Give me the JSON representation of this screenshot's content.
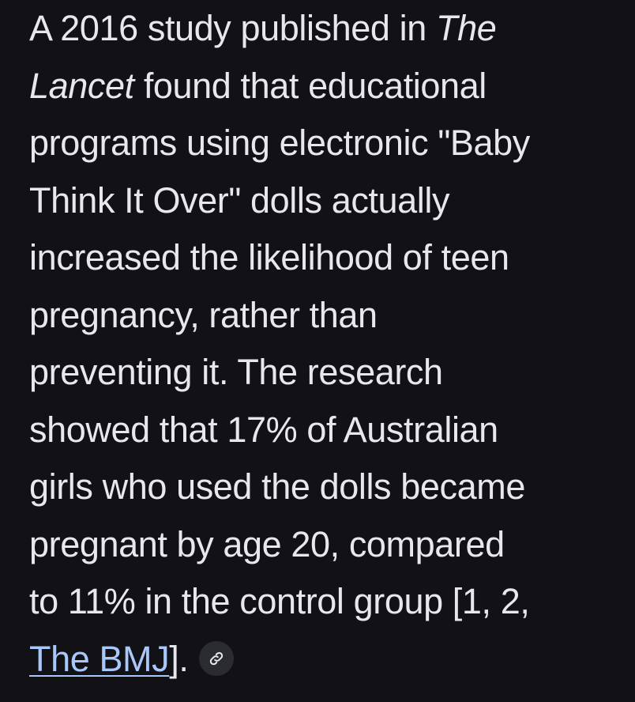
{
  "response": {
    "line1_pre": "A 2016 study published in ",
    "line1_em": "The",
    "line2_em": "Lancet",
    "line2_post": " found that educational",
    "line3": "programs using electronic \"Baby",
    "line4": "Think It Over\" dolls actually",
    "line5": "increased the likelihood of teen",
    "line6": "pregnancy, rather than",
    "line7": "preventing it. The research",
    "line8": "showed that 17% of Australian",
    "line9": "girls who used the dolls became",
    "line10": "pregnant by age 20, compared",
    "line11": "to 11% in the control group [1, 2,",
    "citation_link": "The BMJ",
    "line12_post": "].",
    "link_icon": "link-icon",
    "colors": {
      "background": "#111116",
      "text": "#e8e8ec",
      "link": "#a8c7fa",
      "chip": "#2b2c31"
    }
  }
}
